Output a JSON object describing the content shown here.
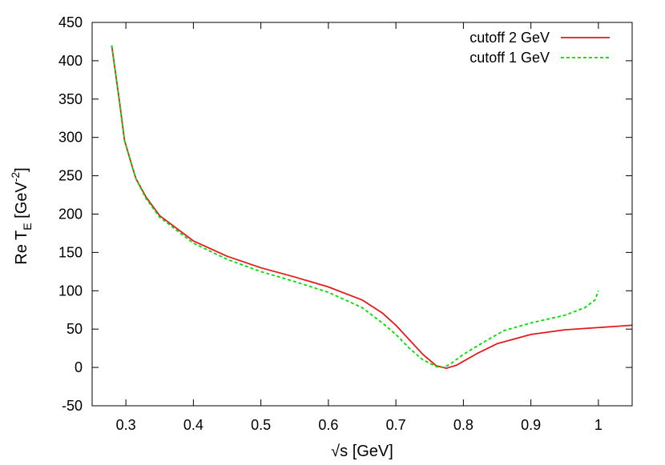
{
  "chart_data": {
    "type": "line",
    "xlabel": "√s [GeV]",
    "ylabel": {
      "base": "Re T",
      "sub": "E",
      "unit_open": " [GeV",
      "sup": "-2",
      "unit_close": "]"
    },
    "xlim": [
      0.25,
      1.05
    ],
    "ylim": [
      -50,
      450
    ],
    "x_ticks": [
      0.3,
      0.4,
      0.5,
      0.6,
      0.7,
      0.8,
      0.9,
      1
    ],
    "x_tick_labels": [
      "0.3",
      "0.4",
      "0.5",
      "0.6",
      "0.7",
      "0.8",
      "0.9",
      "1"
    ],
    "y_ticks": [
      -50,
      0,
      50,
      100,
      150,
      200,
      250,
      300,
      350,
      400,
      450
    ],
    "y_tick_labels": [
      "-50",
      "0",
      "50",
      "100",
      "150",
      "200",
      "250",
      "300",
      "350",
      "400",
      "450"
    ],
    "grid": false,
    "legend_position": "top-right",
    "series": [
      {
        "name": "cutoff 2 GeV",
        "color": "#e41a1c",
        "dash": "solid",
        "points": [
          [
            0.279,
            420
          ],
          [
            0.29,
            350
          ],
          [
            0.298,
            296
          ],
          [
            0.31,
            260
          ],
          [
            0.315,
            246
          ],
          [
            0.33,
            222
          ],
          [
            0.35,
            198
          ],
          [
            0.4,
            165
          ],
          [
            0.45,
            145
          ],
          [
            0.5,
            130
          ],
          [
            0.55,
            118
          ],
          [
            0.6,
            105
          ],
          [
            0.65,
            88
          ],
          [
            0.68,
            71
          ],
          [
            0.7,
            55
          ],
          [
            0.72,
            36
          ],
          [
            0.74,
            17
          ],
          [
            0.76,
            2
          ],
          [
            0.775,
            -1
          ],
          [
            0.79,
            3
          ],
          [
            0.8,
            8
          ],
          [
            0.82,
            18
          ],
          [
            0.85,
            31
          ],
          [
            0.9,
            43
          ],
          [
            0.95,
            49
          ],
          [
            1.0,
            52
          ],
          [
            1.05,
            55
          ]
        ]
      },
      {
        "name": "cutoff 1 GeV",
        "color": "#00dd00",
        "dash": "dashed",
        "points": [
          [
            0.279,
            420
          ],
          [
            0.29,
            350
          ],
          [
            0.298,
            296
          ],
          [
            0.31,
            260
          ],
          [
            0.315,
            246
          ],
          [
            0.33,
            220
          ],
          [
            0.35,
            196
          ],
          [
            0.4,
            162
          ],
          [
            0.45,
            141
          ],
          [
            0.5,
            125
          ],
          [
            0.55,
            112
          ],
          [
            0.6,
            98
          ],
          [
            0.65,
            78
          ],
          [
            0.68,
            58
          ],
          [
            0.7,
            43
          ],
          [
            0.72,
            25
          ],
          [
            0.74,
            10
          ],
          [
            0.76,
            1
          ],
          [
            0.77,
            0
          ],
          [
            0.78,
            4
          ],
          [
            0.8,
            17
          ],
          [
            0.83,
            33
          ],
          [
            0.86,
            48
          ],
          [
            0.9,
            58
          ],
          [
            0.95,
            68
          ],
          [
            0.98,
            78
          ],
          [
            0.995,
            88
          ],
          [
            1.0,
            100
          ]
        ]
      }
    ]
  }
}
